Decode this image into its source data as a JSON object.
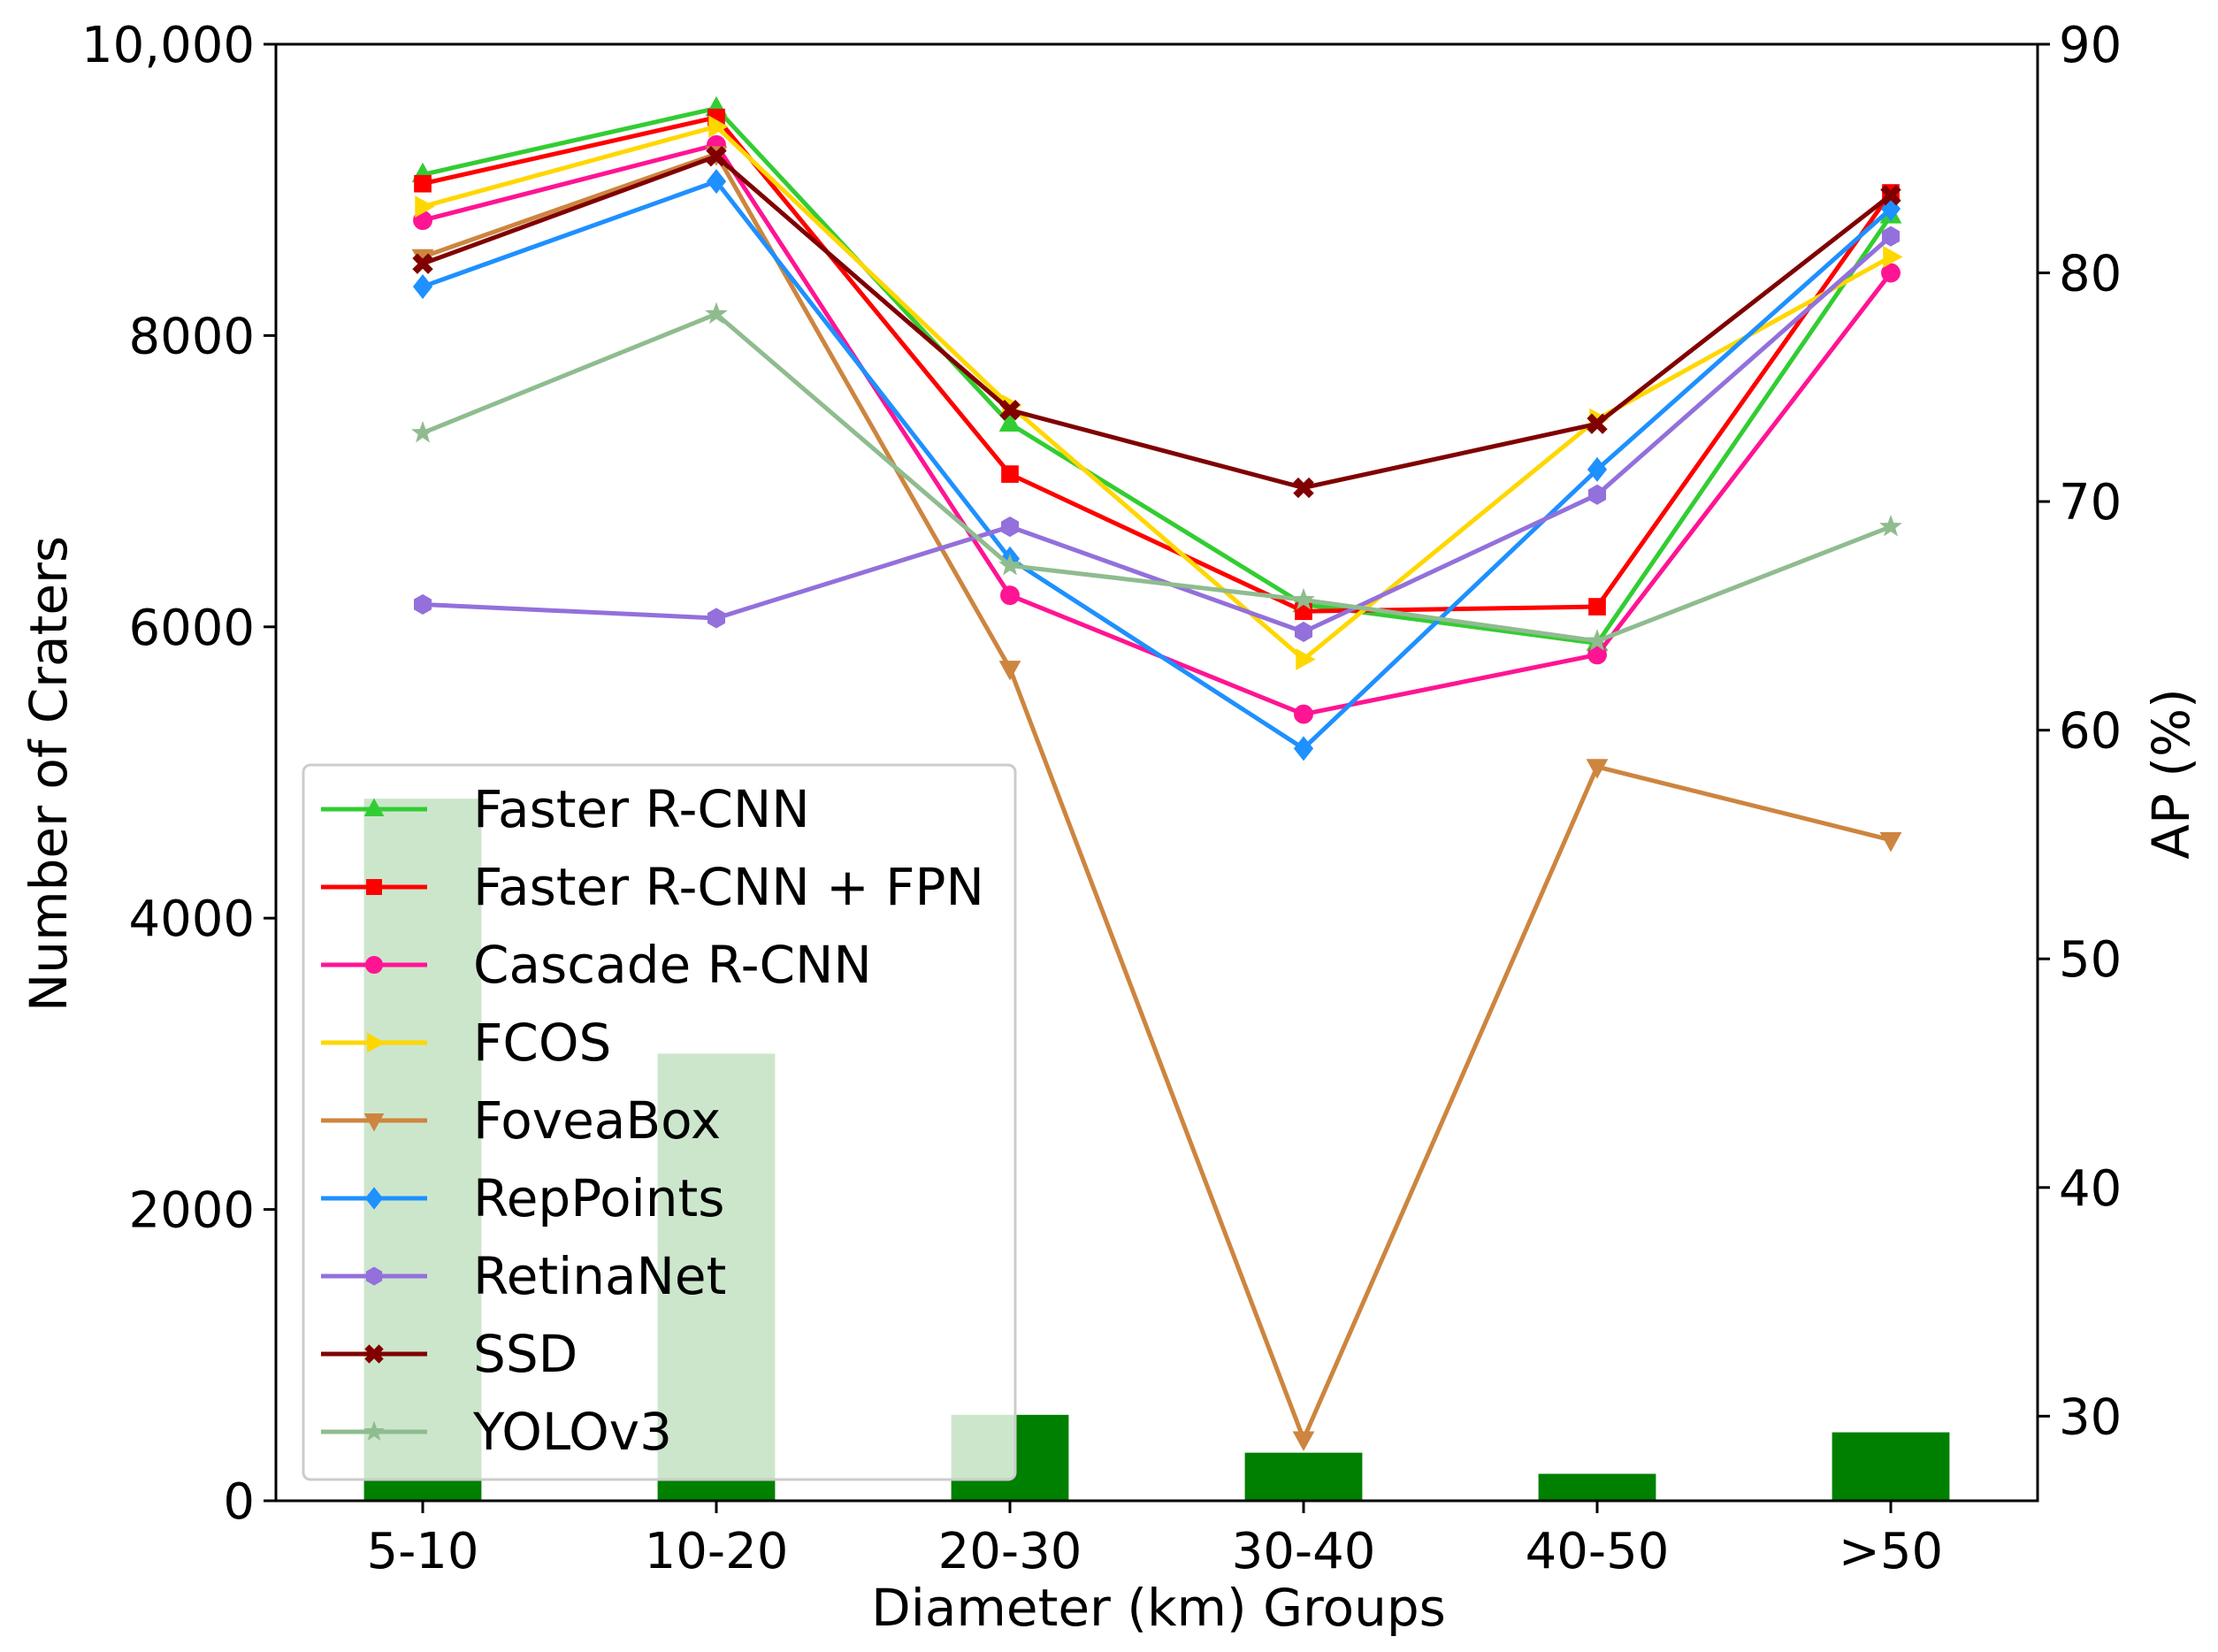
{
  "chart_data": {
    "type": "bar+line",
    "title": "",
    "xlabel": "Diameter (km) Groups",
    "ylabel_left": "Number of Craters",
    "ylabel_right": "AP (%)",
    "categories": [
      "5-10",
      "10-20",
      "20-30",
      "30-40",
      "40-50",
      ">50"
    ],
    "left_axis": {
      "range": [
        0,
        10000
      ],
      "ticks": [
        0,
        2000,
        4000,
        6000,
        8000,
        10000
      ],
      "tick_labels": [
        "0",
        "2000",
        "4000",
        "6000",
        "8000",
        "10,000"
      ]
    },
    "right_axis": {
      "range": [
        26.3,
        90
      ],
      "ticks": [
        30,
        40,
        50,
        60,
        70,
        80,
        90
      ],
      "tick_labels": [
        "30",
        "40",
        "50",
        "60",
        "70",
        "80",
        "90"
      ]
    },
    "bars": {
      "name": "Number of Craters",
      "color": "#008000",
      "values": [
        4820,
        3070,
        590,
        330,
        185,
        470
      ]
    },
    "legend_position": "lower-left",
    "series": [
      {
        "name": "Faster R-CNN",
        "color": "#32CD32",
        "marker": "triangle-up",
        "values": [
          84.3,
          87.2,
          73.4,
          65.5,
          63.8,
          82.5
        ]
      },
      {
        "name": "Faster R-CNN + FPN",
        "color": "#FF0000",
        "marker": "square",
        "values": [
          83.9,
          86.8,
          71.2,
          65.2,
          65.4,
          83.5
        ]
      },
      {
        "name": "Cascade R-CNN",
        "color": "#FF1493",
        "marker": "circle",
        "values": [
          82.3,
          85.6,
          65.9,
          60.7,
          63.3,
          80.0
        ]
      },
      {
        "name": "FCOS",
        "color": "#FFD700",
        "marker": "triangle-right",
        "values": [
          82.9,
          86.4,
          74.2,
          63.1,
          73.6,
          80.7
        ]
      },
      {
        "name": "FoveaBox",
        "color": "#CD853F",
        "marker": "triangle-down",
        "values": [
          80.7,
          85.2,
          62.7,
          29.0,
          58.4,
          55.2
        ]
      },
      {
        "name": "RepPoints",
        "color": "#1E90FF",
        "marker": "diamond",
        "values": [
          79.4,
          84.0,
          67.5,
          59.2,
          71.4,
          82.8
        ]
      },
      {
        "name": "RetinaNet",
        "color": "#9370DB",
        "marker": "hexagon",
        "values": [
          65.5,
          64.9,
          68.9,
          64.3,
          70.3,
          81.6
        ]
      },
      {
        "name": "SSD",
        "color": "#800000",
        "marker": "x",
        "values": [
          80.4,
          85.1,
          74.0,
          70.6,
          73.4,
          83.4
        ]
      },
      {
        "name": "YOLOv3",
        "color": "#8FBC8F",
        "marker": "star",
        "values": [
          73.0,
          78.2,
          67.2,
          65.7,
          63.9,
          68.9
        ]
      }
    ]
  }
}
